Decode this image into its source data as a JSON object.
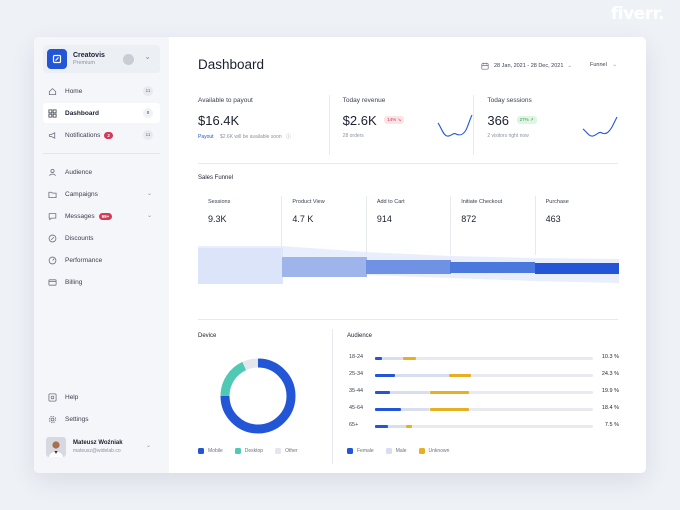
{
  "watermark": "fiverr.",
  "brand": {
    "name": "Creatovis",
    "plan": "Premium"
  },
  "nav_main": [
    {
      "label": "Home",
      "count": "11",
      "icon": "home-icon"
    },
    {
      "label": "Dashboard",
      "count": "0",
      "icon": "grid-icon",
      "active": true
    },
    {
      "label": "Notifications",
      "badge": "2",
      "count": "11",
      "icon": "megaphone-icon"
    }
  ],
  "nav_second": [
    {
      "label": "Audience",
      "icon": "user-icon"
    },
    {
      "label": "Campaigns",
      "icon": "folder-icon",
      "chevron": true
    },
    {
      "label": "Messages",
      "badge": "99+",
      "icon": "chat-icon",
      "chevron": true
    },
    {
      "label": "Discounts",
      "icon": "discount-icon"
    },
    {
      "label": "Performance",
      "icon": "gauge-icon"
    },
    {
      "label": "Billing",
      "icon": "card-icon"
    }
  ],
  "nav_bottom": [
    {
      "label": "Help",
      "icon": "help-icon"
    },
    {
      "label": "Settings",
      "icon": "settings-icon"
    }
  ],
  "user": {
    "name": "Mateusz Woźniak",
    "email": "mateusz@widelab.co"
  },
  "header": {
    "title": "Dashboard",
    "date_range": "28 Jan, 2021 - 28 Dec, 2021",
    "filter": "Funnel"
  },
  "stats": {
    "payout": {
      "label": "Available to payout",
      "value": "$16.4K",
      "link": "Payout",
      "note": "$2.6K will be available soon"
    },
    "revenue": {
      "label": "Today revenue",
      "value": "$2.6K",
      "change": "14% ↘",
      "note": "28 orders"
    },
    "sessions": {
      "label": "Today sessions",
      "value": "366",
      "change": "27% ↗",
      "note": "2 visitors right now"
    }
  },
  "funnel": {
    "title": "Sales Funnel",
    "stages": [
      {
        "label": "Sessions",
        "value": "9.3K"
      },
      {
        "label": "Product View",
        "value": "4.7 K"
      },
      {
        "label": "Add to Cart",
        "value": "914"
      },
      {
        "label": "Initiate Checkout",
        "value": "872"
      },
      {
        "label": "Purchase",
        "value": "463"
      }
    ]
  },
  "device": {
    "title": "Device",
    "legend": [
      {
        "label": "Mobile",
        "color": "#2356d6"
      },
      {
        "label": "Desktop",
        "color": "#4fc9b4"
      },
      {
        "label": "Other",
        "color": "#e3e6ec"
      }
    ],
    "shares": [
      0.75,
      0.18,
      0.07
    ]
  },
  "audience": {
    "title": "Audience",
    "legend": [
      {
        "label": "Female",
        "color": "#2356d6"
      },
      {
        "label": "Male",
        "color": "#d8def0"
      },
      {
        "label": "Unknown",
        "color": "#e8b020"
      }
    ],
    "rows": [
      {
        "label": "18-24",
        "pct": "10.3 %",
        "female": 0.03,
        "male": 0.1,
        "unknown": 0.06
      },
      {
        "label": "25-34",
        "pct": "24.3 %",
        "female": 0.09,
        "male": 0.25,
        "unknown": 0.1
      },
      {
        "label": "35-44",
        "pct": "19.9 %",
        "female": 0.07,
        "male": 0.18,
        "unknown": 0.18
      },
      {
        "label": "45-64",
        "pct": "18.4 %",
        "female": 0.12,
        "male": 0.13,
        "unknown": 0.18
      },
      {
        "label": "65+",
        "pct": "7.5 %",
        "female": 0.06,
        "male": 0.08,
        "unknown": 0.03
      }
    ]
  }
}
